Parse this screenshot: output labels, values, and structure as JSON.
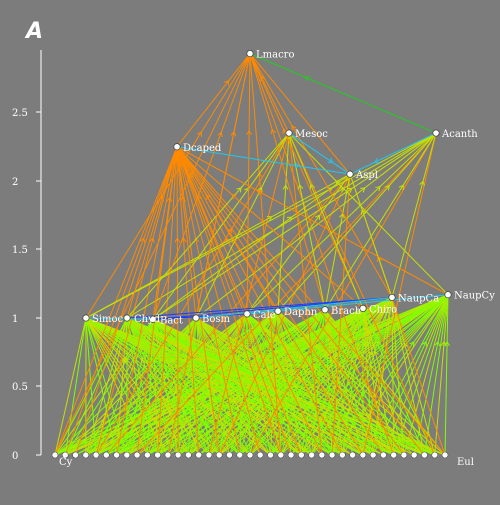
{
  "panel_label": "A",
  "y_axis": {
    "ticks": [
      "0",
      "0.5",
      "1",
      "1.5",
      "2",
      "2.5"
    ]
  },
  "colors": {
    "background": "#7c7c7c",
    "link_plant": "#80ff00",
    "link_mid": "#c8e000",
    "link_predator": "#ff8a00",
    "link_cyan": "#20c8f0",
    "link_blue": "#1a3cff",
    "link_green": "#22cc22"
  },
  "chart_data": {
    "type": "food-web",
    "y_label": "",
    "ylim": [
      0,
      2.9
    ],
    "nodes": [
      {
        "id": "Lmacro",
        "label": "Lmacro",
        "level": 2.93
      },
      {
        "id": "Mesoc",
        "label": "Mesoc",
        "level": 2.35
      },
      {
        "id": "Acanth",
        "label": "Acanth",
        "level": 2.35
      },
      {
        "id": "Dcaped",
        "label": "Dcaped",
        "level": 2.25
      },
      {
        "id": "Aspl",
        "label": "Aspl",
        "level": 2.05
      },
      {
        "id": "NaupCy",
        "label": "NaupCy",
        "level": 1.17
      },
      {
        "id": "NaupCa",
        "label": "NaupCa",
        "level": 1.15
      },
      {
        "id": "Chiro",
        "label": "Chiro",
        "level": 1.07
      },
      {
        "id": "Brach",
        "label": "Brach",
        "level": 1.06
      },
      {
        "id": "Daphn",
        "label": "Daphn",
        "level": 1.05
      },
      {
        "id": "Cale",
        "label": "Cale",
        "level": 1.03
      },
      {
        "id": "Bosm",
        "label": "Bosm",
        "level": 1.0
      },
      {
        "id": "Bact",
        "label": "Bact",
        "level": 0.99
      },
      {
        "id": "Chyd",
        "label": "Chyd",
        "level": 1.0
      },
      {
        "id": "Simoc",
        "label": "Simoc",
        "level": 1.0
      }
    ],
    "basal_labels": [
      "Cy",
      "Eul"
    ]
  }
}
